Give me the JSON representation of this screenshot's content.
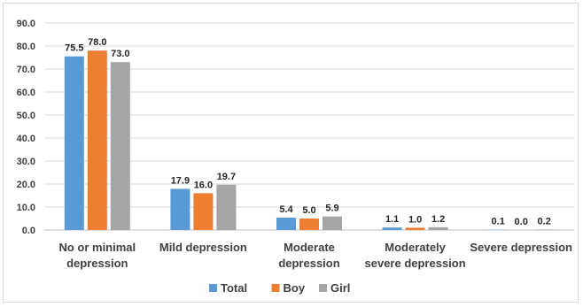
{
  "chart_data": {
    "type": "bar",
    "title": "",
    "xlabel": "",
    "ylabel": "",
    "ylim": [
      0,
      90
    ],
    "yticks": [
      "0.0",
      "10.0",
      "20.0",
      "30.0",
      "40.0",
      "50.0",
      "60.0",
      "70.0",
      "80.0",
      "90.0"
    ],
    "grid": true,
    "legend_position": "bottom",
    "categories": [
      [
        "No or minimal",
        "depression"
      ],
      [
        "Mild depression"
      ],
      [
        "Moderate",
        "depression"
      ],
      [
        "Moderately",
        "severe depression"
      ],
      [
        "Severe depression"
      ]
    ],
    "series": [
      {
        "name": "Total",
        "color": "#5b9bd5",
        "values": [
          75.5,
          17.9,
          5.4,
          1.1,
          0.1
        ],
        "labels": [
          "75.5",
          "17.9",
          "5.4",
          "1.1",
          "0.1"
        ]
      },
      {
        "name": "Boy",
        "color": "#ed7d31",
        "values": [
          78.0,
          16.0,
          5.0,
          1.0,
          0.0
        ],
        "labels": [
          "78.0",
          "16.0",
          "5.0",
          "1.0",
          "0.0"
        ]
      },
      {
        "name": "Girl",
        "color": "#a5a5a5",
        "values": [
          73.0,
          19.7,
          5.9,
          1.2,
          0.2
        ],
        "labels": [
          "73.0",
          "19.7",
          "5.9",
          "1.2",
          "0.2"
        ]
      }
    ]
  }
}
